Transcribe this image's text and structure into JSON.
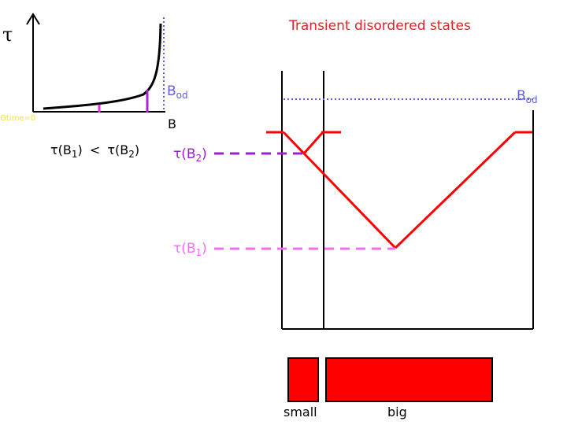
{
  "title": "Transient disordered states",
  "inset": {
    "y_axis_label": "τ",
    "x_axis_label": "B",
    "origin_label": "Θtime=0",
    "bod_label_base": "B",
    "bod_label_sub": "od",
    "comparison": {
      "a_base": "τ(B",
      "a_sub": "1",
      "a_close": ")",
      "op": "<",
      "b_base": "τ(B",
      "b_sub": "2",
      "b_close": ")"
    }
  },
  "main": {
    "bod_label_base": "B",
    "bod_label_sub": "od",
    "tau_b2": {
      "base": "τ(B",
      "sub": "2",
      "close": ")"
    },
    "tau_b1": {
      "base": "τ(B",
      "sub": "1",
      "close": ")"
    }
  },
  "blocks": {
    "small_label": "small",
    "big_label": "big"
  },
  "colors": {
    "title": "#e8202a",
    "red": "#ff0000",
    "violet": "#b020d8",
    "magenta": "#e030e0",
    "pink": "#f070f0",
    "purple_dash": "#9a20d0",
    "blue_dots": "#6060d8",
    "axis": "#000000"
  }
}
